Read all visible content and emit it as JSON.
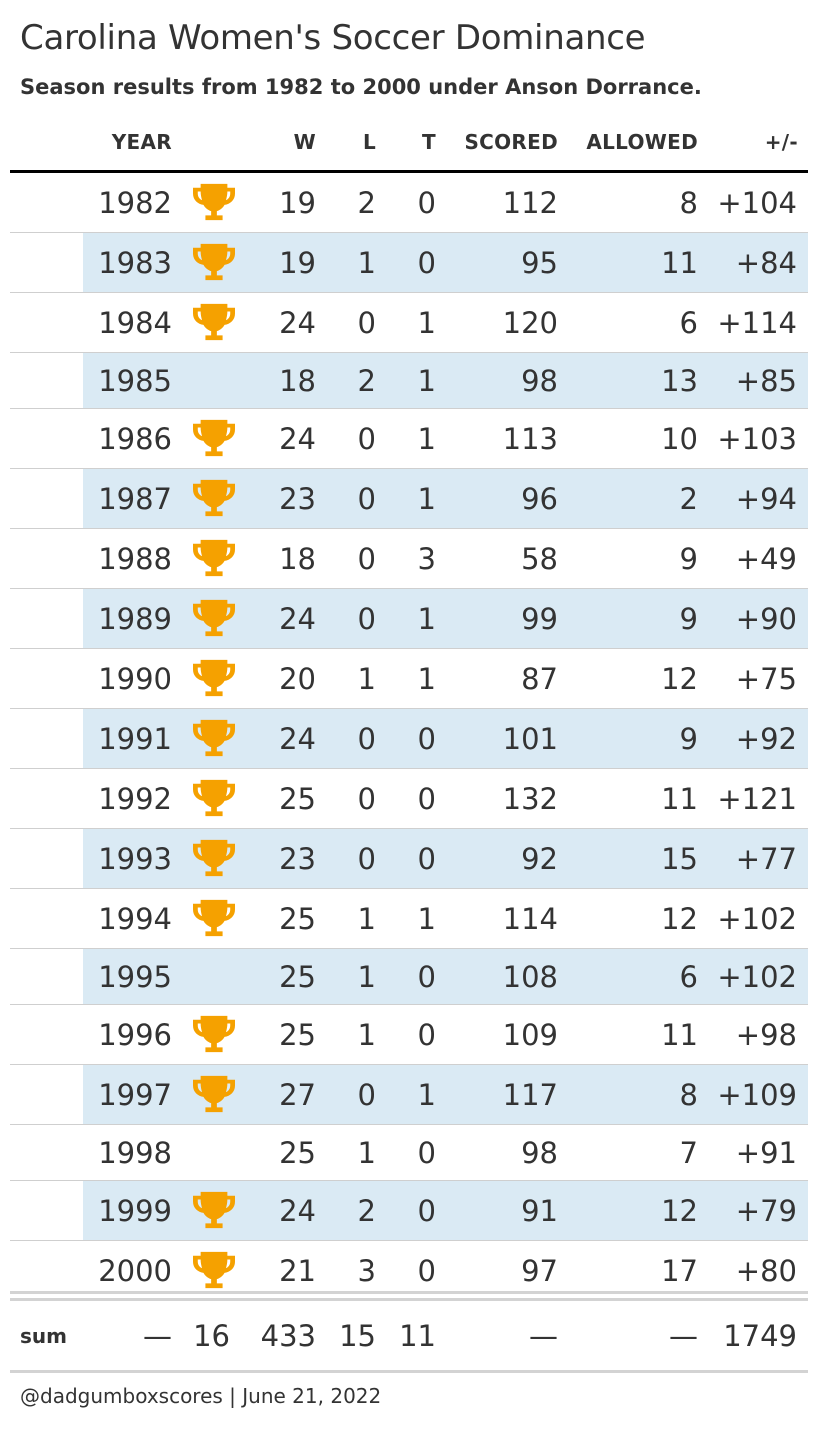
{
  "title": "Carolina Women's Soccer Dominance",
  "subtitle": "Season results from 1982 to 2000 under Anson Dorrance.",
  "columns": {
    "year": "YEAR",
    "w": "W",
    "l": "L",
    "t": "T",
    "scored": "SCORED",
    "allowed": "ALLOWED",
    "diff": "+/-"
  },
  "trophy_color": "#f5a100",
  "stripe_color": "#daeaf4",
  "rows": [
    {
      "year": "1982",
      "trophy": true,
      "w": "19",
      "l": "2",
      "t": "0",
      "scored": "112",
      "allowed": "8",
      "diff": "+104"
    },
    {
      "year": "1983",
      "trophy": true,
      "w": "19",
      "l": "1",
      "t": "0",
      "scored": "95",
      "allowed": "11",
      "diff": "+84"
    },
    {
      "year": "1984",
      "trophy": true,
      "w": "24",
      "l": "0",
      "t": "1",
      "scored": "120",
      "allowed": "6",
      "diff": "+114"
    },
    {
      "year": "1985",
      "trophy": false,
      "w": "18",
      "l": "2",
      "t": "1",
      "scored": "98",
      "allowed": "13",
      "diff": "+85"
    },
    {
      "year": "1986",
      "trophy": true,
      "w": "24",
      "l": "0",
      "t": "1",
      "scored": "113",
      "allowed": "10",
      "diff": "+103"
    },
    {
      "year": "1987",
      "trophy": true,
      "w": "23",
      "l": "0",
      "t": "1",
      "scored": "96",
      "allowed": "2",
      "diff": "+94"
    },
    {
      "year": "1988",
      "trophy": true,
      "w": "18",
      "l": "0",
      "t": "3",
      "scored": "58",
      "allowed": "9",
      "diff": "+49"
    },
    {
      "year": "1989",
      "trophy": true,
      "w": "24",
      "l": "0",
      "t": "1",
      "scored": "99",
      "allowed": "9",
      "diff": "+90"
    },
    {
      "year": "1990",
      "trophy": true,
      "w": "20",
      "l": "1",
      "t": "1",
      "scored": "87",
      "allowed": "12",
      "diff": "+75"
    },
    {
      "year": "1991",
      "trophy": true,
      "w": "24",
      "l": "0",
      "t": "0",
      "scored": "101",
      "allowed": "9",
      "diff": "+92"
    },
    {
      "year": "1992",
      "trophy": true,
      "w": "25",
      "l": "0",
      "t": "0",
      "scored": "132",
      "allowed": "11",
      "diff": "+121"
    },
    {
      "year": "1993",
      "trophy": true,
      "w": "23",
      "l": "0",
      "t": "0",
      "scored": "92",
      "allowed": "15",
      "diff": "+77"
    },
    {
      "year": "1994",
      "trophy": true,
      "w": "25",
      "l": "1",
      "t": "1",
      "scored": "114",
      "allowed": "12",
      "diff": "+102"
    },
    {
      "year": "1995",
      "trophy": false,
      "w": "25",
      "l": "1",
      "t": "0",
      "scored": "108",
      "allowed": "6",
      "diff": "+102"
    },
    {
      "year": "1996",
      "trophy": true,
      "w": "25",
      "l": "1",
      "t": "0",
      "scored": "109",
      "allowed": "11",
      "diff": "+98"
    },
    {
      "year": "1997",
      "trophy": true,
      "w": "27",
      "l": "0",
      "t": "1",
      "scored": "117",
      "allowed": "8",
      "diff": "+109"
    },
    {
      "year": "1998",
      "trophy": false,
      "w": "25",
      "l": "1",
      "t": "0",
      "scored": "98",
      "allowed": "7",
      "diff": "+91"
    },
    {
      "year": "1999",
      "trophy": true,
      "w": "24",
      "l": "2",
      "t": "0",
      "scored": "91",
      "allowed": "12",
      "diff": "+79"
    },
    {
      "year": "2000",
      "trophy": true,
      "w": "21",
      "l": "3",
      "t": "0",
      "scored": "97",
      "allowed": "17",
      "diff": "+80"
    }
  ],
  "summary": {
    "label": "sum",
    "year": "—",
    "trophies": "16",
    "w": "433",
    "l": "15",
    "t": "11",
    "scored": "—",
    "allowed": "—",
    "diff": "1749"
  },
  "footer": "@dadgumboxscores | June 21, 2022"
}
